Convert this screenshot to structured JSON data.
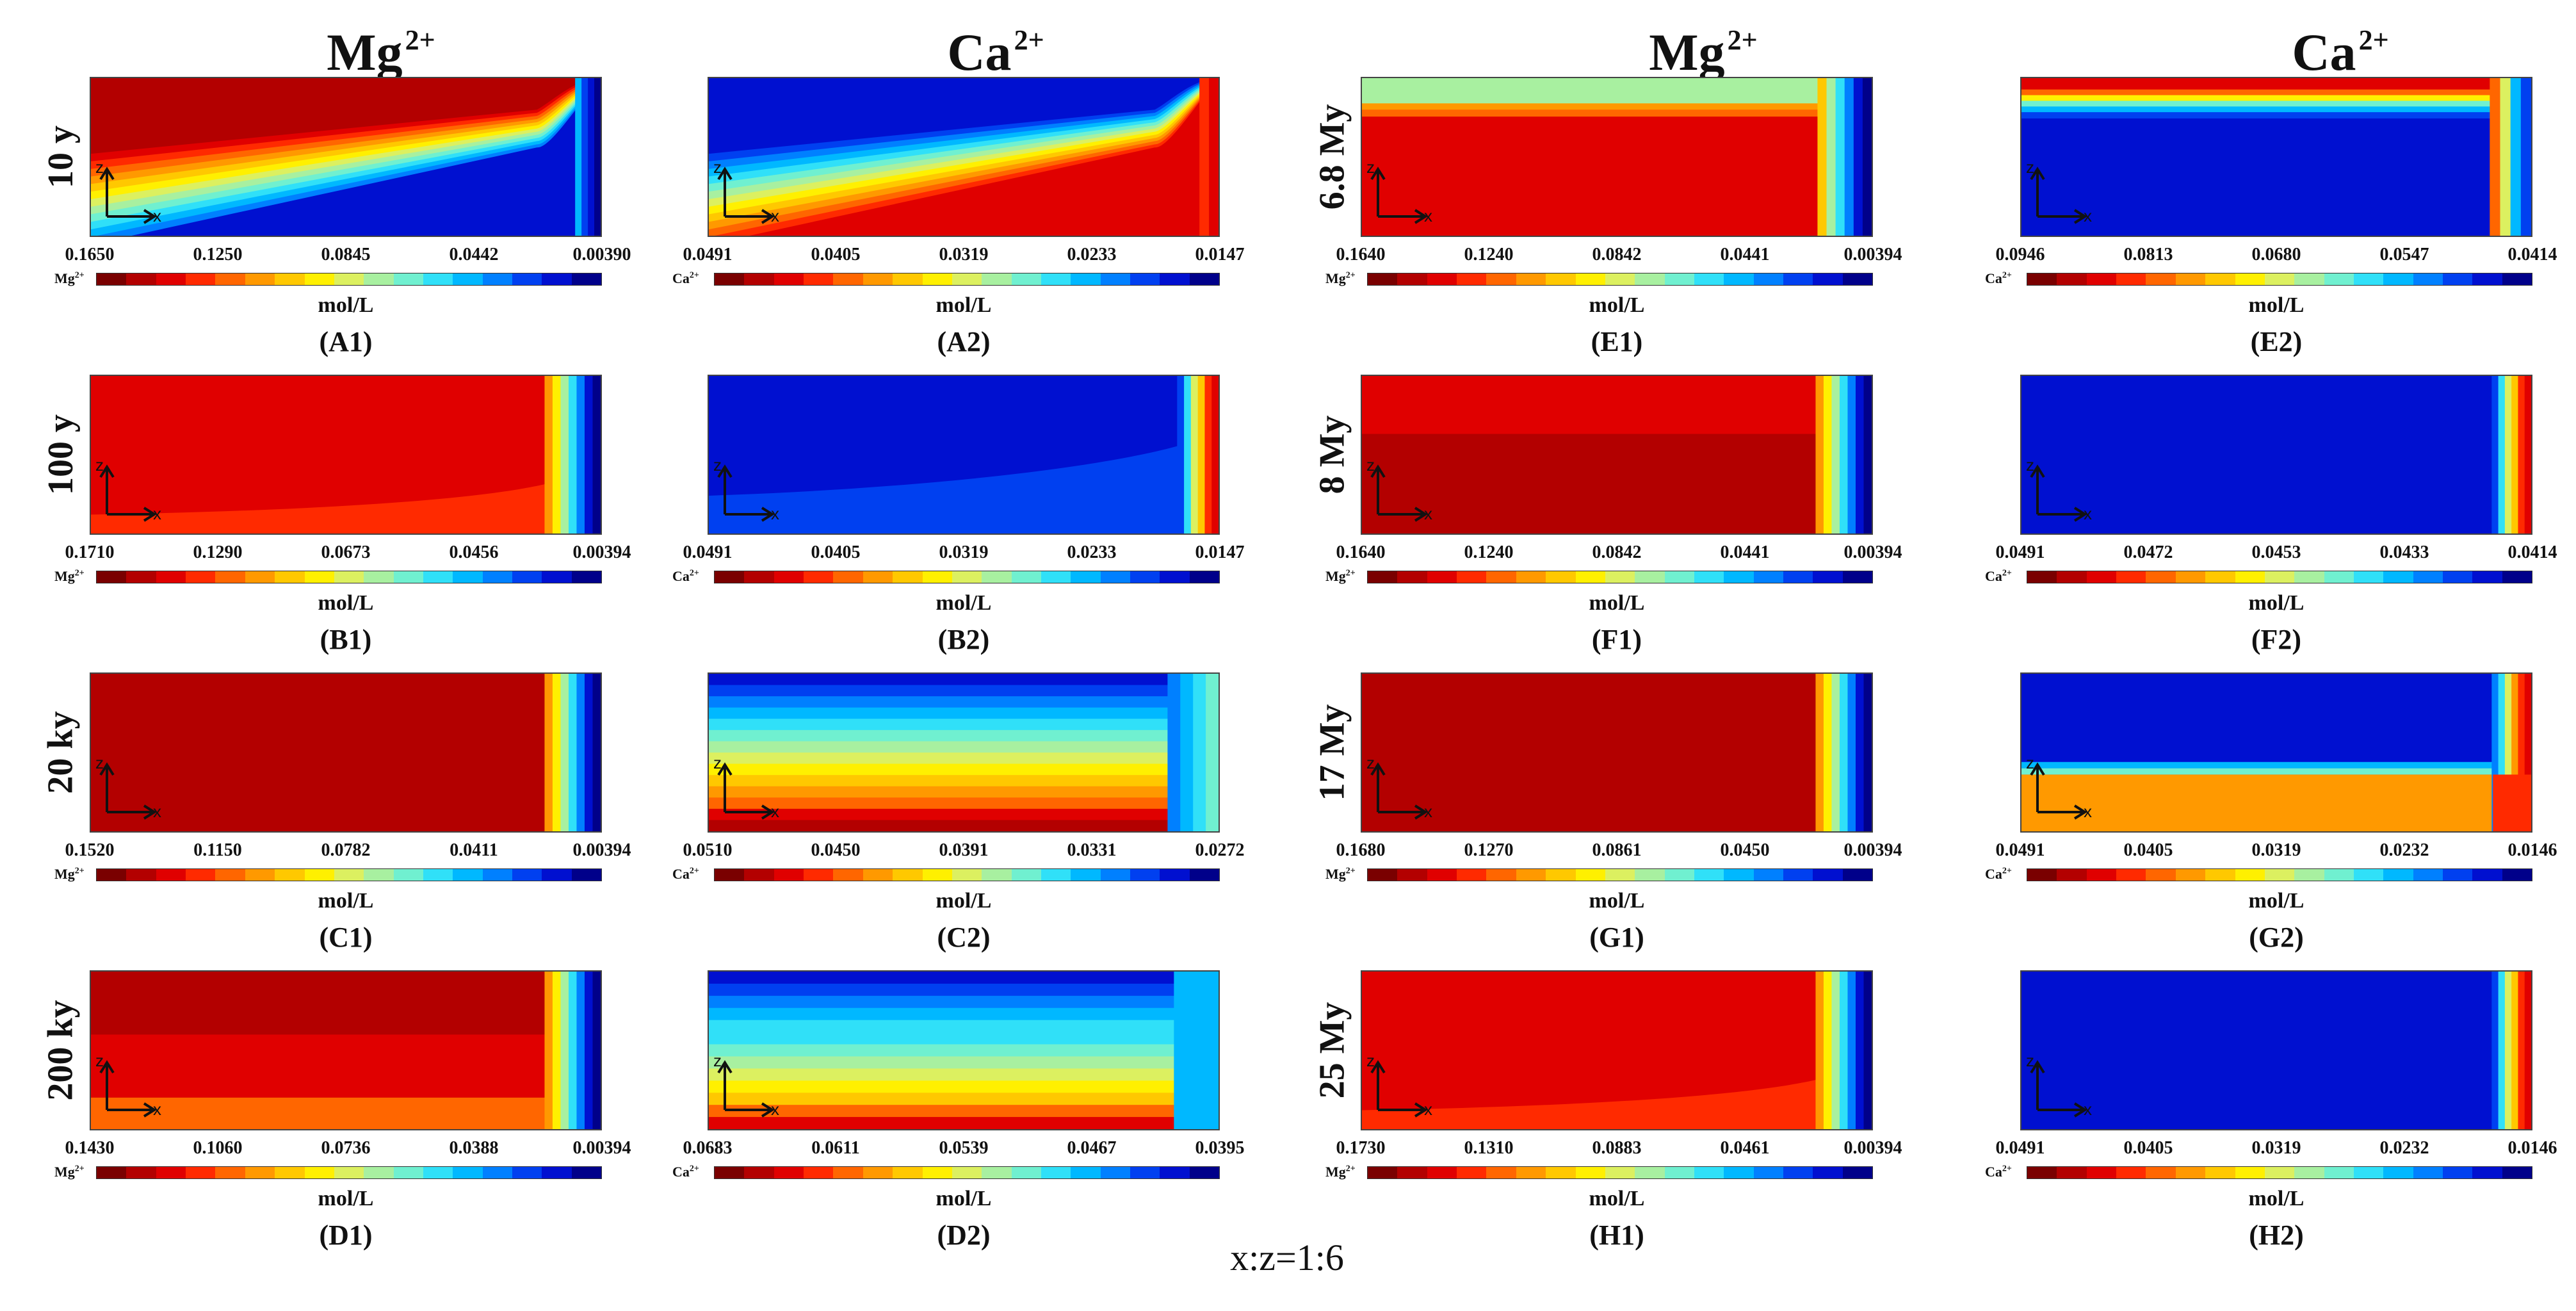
{
  "column_headers": [
    {
      "ion": "Mg",
      "charge": "2+"
    },
    {
      "ion": "Ca",
      "charge": "2+"
    },
    {
      "ion": "Mg",
      "charge": "2+"
    },
    {
      "ion": "Ca",
      "charge": "2+"
    }
  ],
  "scale_note": "x:z=1:6",
  "units": "mol/L",
  "axis_labels": {
    "z": "z",
    "x": "x"
  },
  "colormap": [
    "#7a0000",
    "#b30000",
    "#e00000",
    "#ff2a00",
    "#ff6600",
    "#ff9900",
    "#ffc800",
    "#fff000",
    "#dcf060",
    "#a8f0a0",
    "#70f0d0",
    "#30e0f8",
    "#00b8ff",
    "#0080ff",
    "#0040f0",
    "#0010d0",
    "#00008a"
  ],
  "panels": [
    {
      "id": "A1",
      "time": "10 y",
      "ion": "Mg",
      "charge": "2+",
      "ticks": [
        "0.1650",
        "0.1250",
        "0.0845",
        "0.0442",
        "0.00390"
      ],
      "label": "(A1)",
      "pattern": "slope-hi"
    },
    {
      "id": "A2",
      "time": "",
      "ion": "Ca",
      "charge": "2+",
      "ticks": [
        "0.0491",
        "0.0405",
        "0.0319",
        "0.0233",
        "0.0147"
      ],
      "label": "(A2)",
      "pattern": "slope-lo"
    },
    {
      "id": "E1",
      "time": "6.8 My",
      "ion": "Mg",
      "charge": "2+",
      "ticks": [
        "0.1640",
        "0.1240",
        "0.0842",
        "0.0441",
        "0.00394"
      ],
      "label": "(E1)",
      "pattern": "topband-mg"
    },
    {
      "id": "E2",
      "time": "",
      "ion": "Ca",
      "charge": "2+",
      "ticks": [
        "0.0946",
        "0.0813",
        "0.0680",
        "0.0547",
        "0.0414"
      ],
      "label": "(E2)",
      "pattern": "topband-ca"
    },
    {
      "id": "B1",
      "time": "100 y",
      "ion": "Mg",
      "charge": "2+",
      "ticks": [
        "0.1710",
        "0.1290",
        "0.0673",
        "0.0456",
        "0.00394"
      ],
      "label": "(B1)",
      "pattern": "front-red"
    },
    {
      "id": "B2",
      "time": "",
      "ion": "Ca",
      "charge": "2+",
      "ticks": [
        "0.0491",
        "0.0405",
        "0.0319",
        "0.0233",
        "0.0147"
      ],
      "label": "(B2)",
      "pattern": "front-blue"
    },
    {
      "id": "F1",
      "time": "8 My",
      "ion": "Mg",
      "charge": "2+",
      "ticks": [
        "0.1640",
        "0.1240",
        "0.0842",
        "0.0441",
        "0.00394"
      ],
      "label": "(F1)",
      "pattern": "front-twored"
    },
    {
      "id": "F2",
      "time": "",
      "ion": "Ca",
      "charge": "2+",
      "ticks": [
        "0.0491",
        "0.0472",
        "0.0453",
        "0.0433",
        "0.0414"
      ],
      "label": "(F2)",
      "pattern": "front-blue-edge"
    },
    {
      "id": "C1",
      "time": "20 ky",
      "ion": "Mg",
      "charge": "2+",
      "ticks": [
        "0.1520",
        "0.1150",
        "0.0782",
        "0.0411",
        "0.00394"
      ],
      "label": "(C1)",
      "pattern": "front-dark"
    },
    {
      "id": "C2",
      "time": "",
      "ion": "Ca",
      "charge": "2+",
      "ticks": [
        "0.0510",
        "0.0450",
        "0.0391",
        "0.0331",
        "0.0272"
      ],
      "label": "(C2)",
      "pattern": "layers-ca"
    },
    {
      "id": "G1",
      "time": "17 My",
      "ion": "Mg",
      "charge": "2+",
      "ticks": [
        "0.1680",
        "0.1270",
        "0.0861",
        "0.0450",
        "0.00394"
      ],
      "label": "(G1)",
      "pattern": "front-dark"
    },
    {
      "id": "G2",
      "time": "",
      "ion": "Ca",
      "charge": "2+",
      "ticks": [
        "0.0491",
        "0.0405",
        "0.0319",
        "0.0232",
        "0.0146"
      ],
      "label": "(G2)",
      "pattern": "blue-orange"
    },
    {
      "id": "D1",
      "time": "200 ky",
      "ion": "Mg",
      "charge": "2+",
      "ticks": [
        "0.1430",
        "0.1060",
        "0.0736",
        "0.0388",
        "0.00394"
      ],
      "label": "(D1)",
      "pattern": "layers-mg"
    },
    {
      "id": "D2",
      "time": "",
      "ion": "Ca",
      "charge": "2+",
      "ticks": [
        "0.0683",
        "0.0611",
        "0.0539",
        "0.0467",
        "0.0395"
      ],
      "label": "(D2)",
      "pattern": "layers-ca2"
    },
    {
      "id": "H1",
      "time": "25 My",
      "ion": "Mg",
      "charge": "2+",
      "ticks": [
        "0.1730",
        "0.1310",
        "0.0883",
        "0.0461",
        "0.00394"
      ],
      "label": "(H1)",
      "pattern": "front-red"
    },
    {
      "id": "H2",
      "time": "",
      "ion": "Ca",
      "charge": "2+",
      "ticks": [
        "0.0491",
        "0.0405",
        "0.0319",
        "0.0232",
        "0.0146"
      ],
      "label": "(H2)",
      "pattern": "front-blue-edge"
    }
  ]
}
